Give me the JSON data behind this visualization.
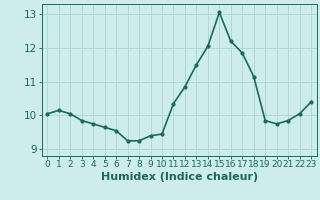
{
  "x": [
    0,
    1,
    2,
    3,
    4,
    5,
    6,
    7,
    8,
    9,
    10,
    11,
    12,
    13,
    14,
    15,
    16,
    17,
    18,
    19,
    20,
    21,
    22,
    23
  ],
  "y": [
    10.05,
    10.15,
    10.05,
    9.85,
    9.75,
    9.65,
    9.55,
    9.25,
    9.25,
    9.4,
    9.45,
    10.35,
    10.85,
    11.5,
    12.05,
    13.05,
    12.2,
    11.85,
    11.15,
    9.85,
    9.75,
    9.85,
    10.05,
    10.4
  ],
  "line_color": "#1a6b5a",
  "marker": "o",
  "marker_size": 2.0,
  "bg_color": "#cdecea",
  "grid_color": "#b0d8d4",
  "tick_color": "#1a6b5a",
  "label_color": "#1a6b5a",
  "xlabel": "Humidex (Indice chaleur)",
  "ylim": [
    8.8,
    13.3
  ],
  "xlim": [
    -0.5,
    23.5
  ],
  "yticks": [
    9,
    10,
    11,
    12,
    13
  ],
  "xticks": [
    0,
    1,
    2,
    3,
    4,
    5,
    6,
    7,
    8,
    9,
    10,
    11,
    12,
    13,
    14,
    15,
    16,
    17,
    18,
    19,
    20,
    21,
    22,
    23
  ],
  "linewidth": 1.2,
  "font_size": 7.5,
  "xlabel_fontsize": 8.0
}
